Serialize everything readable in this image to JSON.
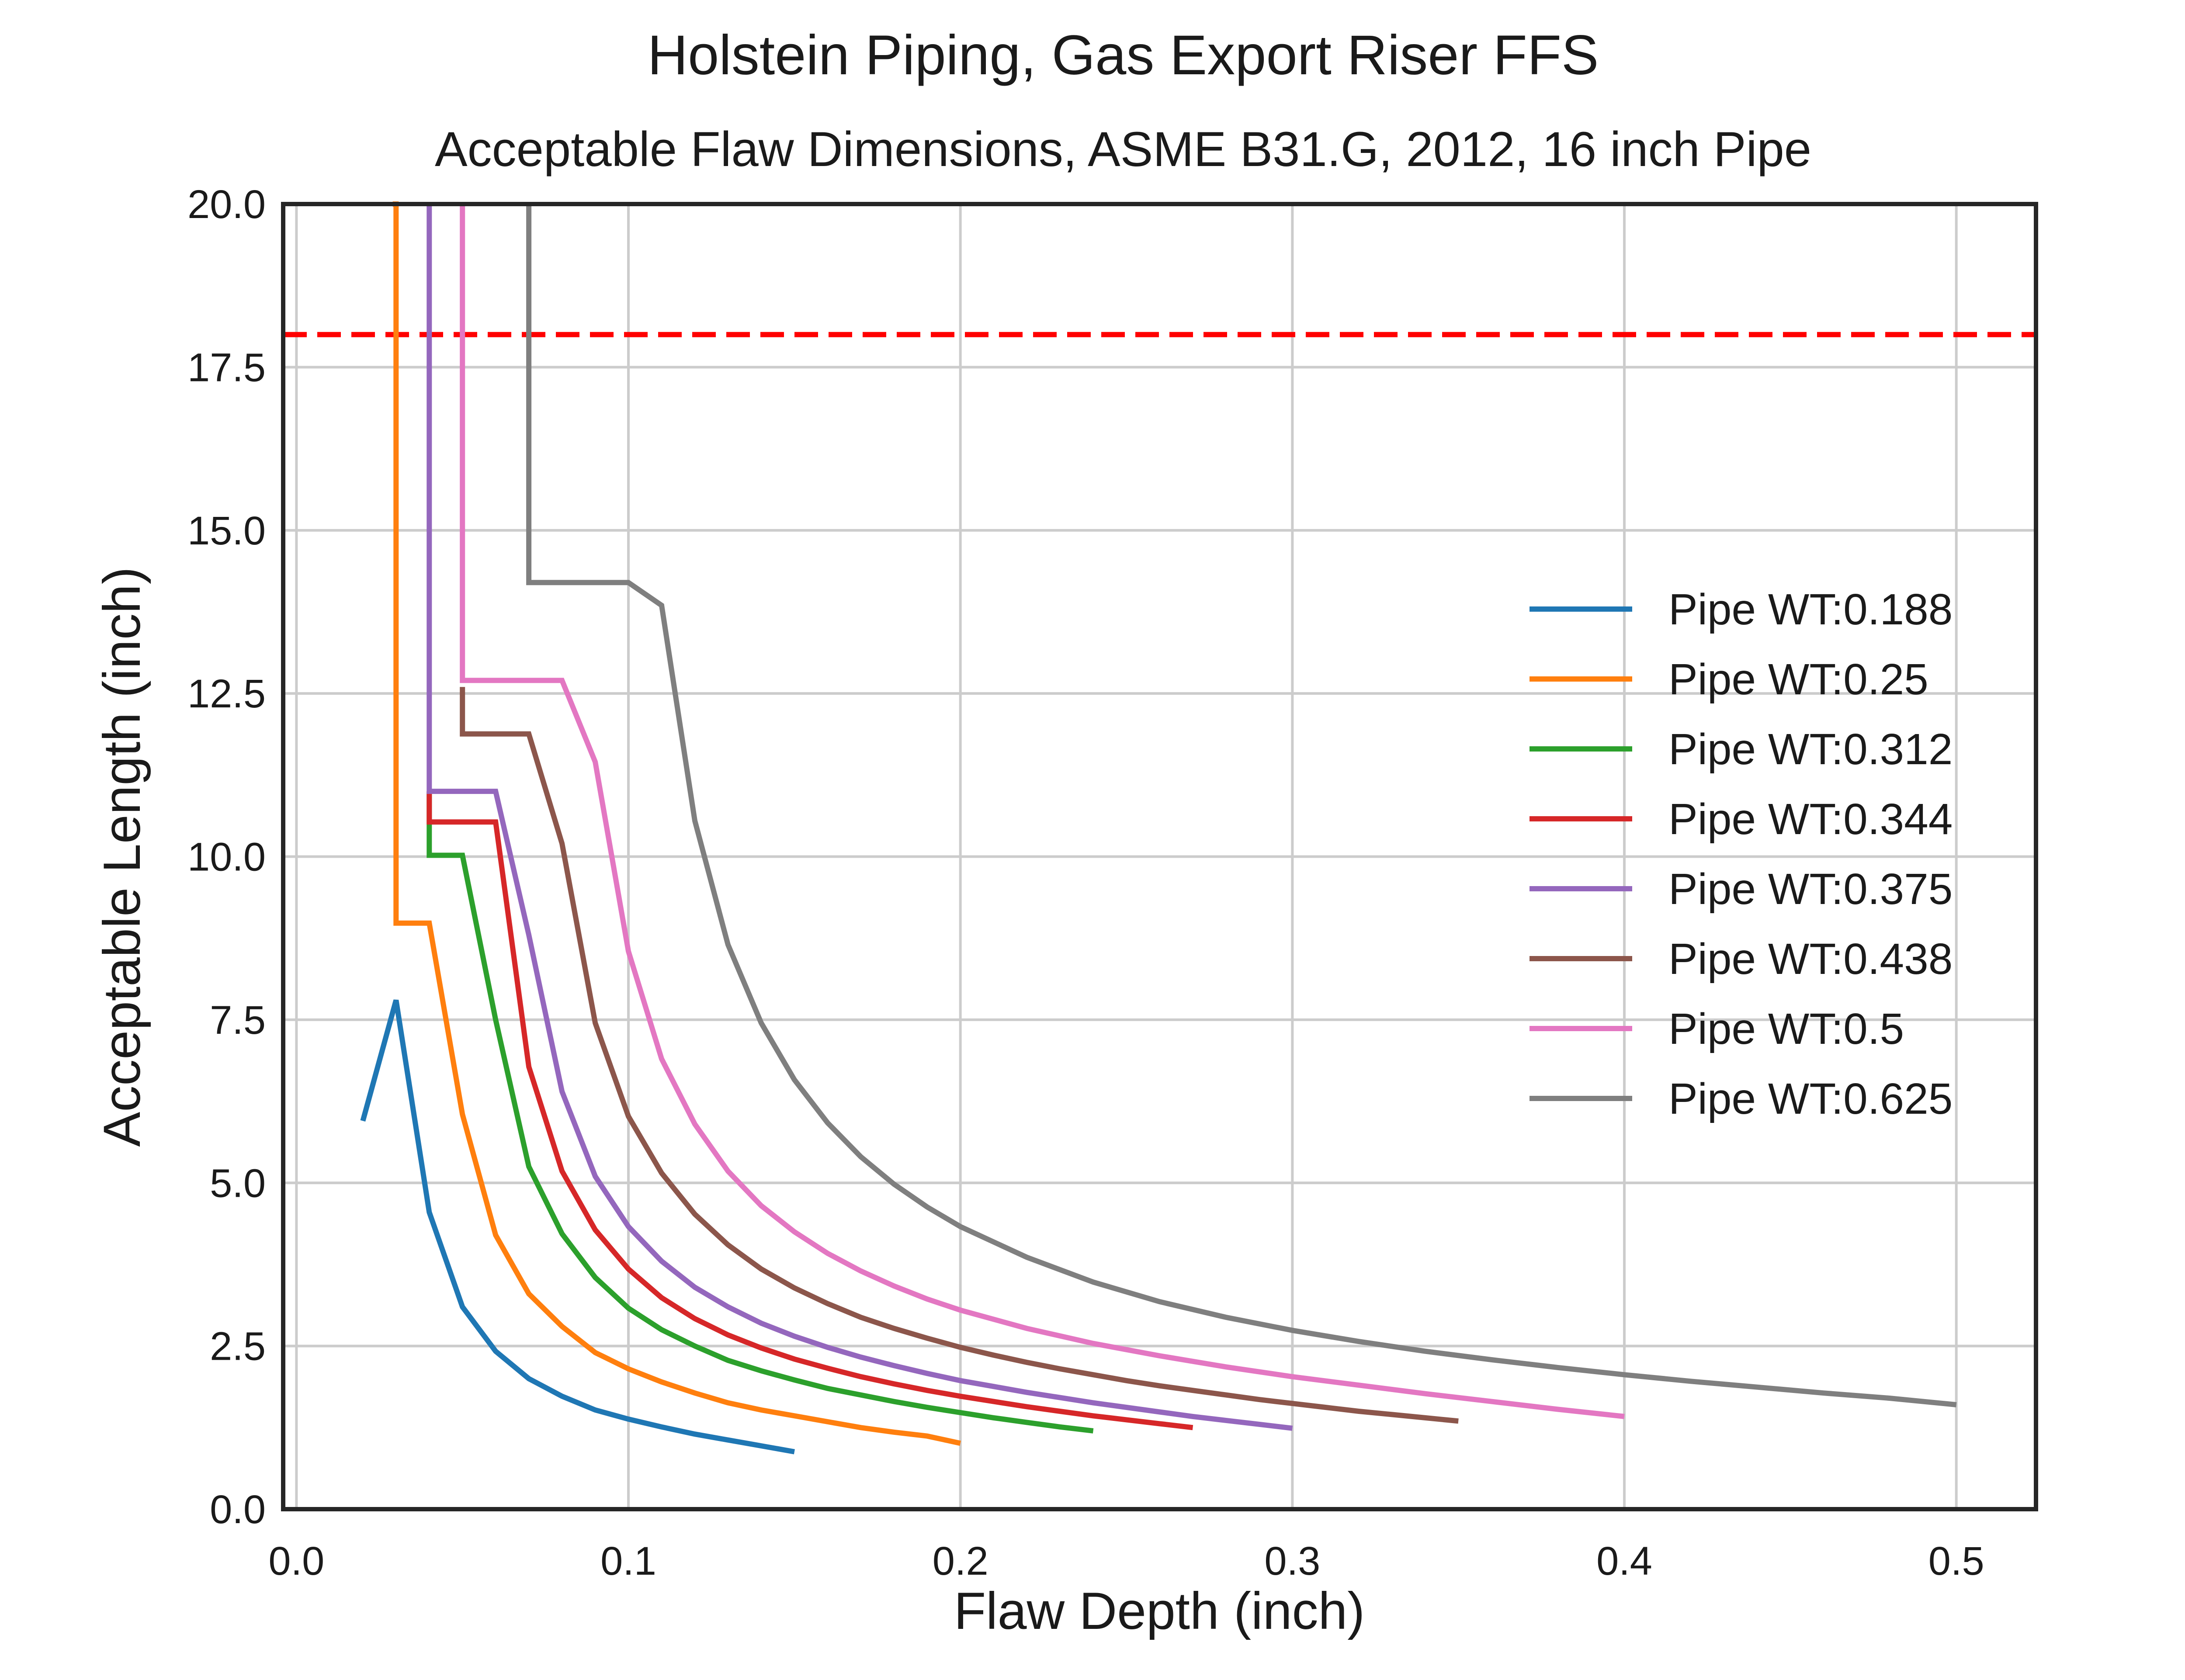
{
  "chart_data": {
    "type": "line",
    "title": "Holstein Piping, Gas Export Riser FFS",
    "subtitle": "Acceptable Flaw Dimensions, ASME B31.G, 2012, 16 inch Pipe",
    "xlabel": "Flaw Depth (inch)",
    "ylabel": "Acceptable Length (inch)",
    "xlim": [
      -0.004,
      0.524
    ],
    "ylim": [
      0,
      20
    ],
    "xticks": [
      0.0,
      0.1,
      0.2,
      0.3,
      0.4,
      0.5
    ],
    "xtick_labels": [
      "0.0",
      "0.1",
      "0.2",
      "0.3",
      "0.4",
      "0.5"
    ],
    "yticks": [
      0.0,
      2.5,
      5.0,
      7.5,
      10.0,
      12.5,
      15.0,
      17.5,
      20.0
    ],
    "ytick_labels": [
      "0.0",
      "2.5",
      "5.0",
      "7.5",
      "10.0",
      "12.5",
      "15.0",
      "17.5",
      "20.0"
    ],
    "grid": true,
    "legend_position": "center-right",
    "reference_line": {
      "y": 18,
      "color": "#ff0000",
      "style": "dashed"
    },
    "series": [
      {
        "name": "Pipe WT:0.188",
        "color": "#1f77b4",
        "x": [
          0.02,
          0.03,
          0.04,
          0.05,
          0.06,
          0.07,
          0.08,
          0.09,
          0.1,
          0.11,
          0.12,
          0.13,
          0.14,
          0.15
        ],
        "y": [
          5.95,
          7.8,
          4.55,
          3.1,
          2.42,
          2.0,
          1.73,
          1.52,
          1.38,
          1.26,
          1.15,
          1.06,
          0.97,
          0.88
        ]
      },
      {
        "name": "Pipe WT:0.25",
        "color": "#ff7f0e",
        "x": [
          0.029,
          0.03,
          0.03,
          0.04,
          0.05,
          0.06,
          0.07,
          0.08,
          0.09,
          0.1,
          0.11,
          0.12,
          0.13,
          0.14,
          0.15,
          0.16,
          0.17,
          0.18,
          0.19,
          0.2
        ],
        "y": [
          20.0,
          20.0,
          8.98,
          8.98,
          6.05,
          4.2,
          3.3,
          2.8,
          2.4,
          2.15,
          1.95,
          1.78,
          1.63,
          1.52,
          1.43,
          1.34,
          1.25,
          1.18,
          1.12,
          1.01
        ]
      },
      {
        "name": "Pipe WT:0.312",
        "color": "#2ca02c",
        "x": [
          0.04,
          0.04,
          0.05,
          0.06,
          0.07,
          0.08,
          0.09,
          0.1,
          0.11,
          0.12,
          0.13,
          0.14,
          0.15,
          0.16,
          0.17,
          0.18,
          0.19,
          0.2,
          0.21,
          0.22,
          0.23,
          0.24
        ],
        "y": [
          11.0,
          10.02,
          10.02,
          7.5,
          5.25,
          4.22,
          3.55,
          3.08,
          2.75,
          2.5,
          2.28,
          2.12,
          1.98,
          1.85,
          1.75,
          1.65,
          1.56,
          1.48,
          1.4,
          1.33,
          1.26,
          1.2
        ]
      },
      {
        "name": "Pipe WT:0.344",
        "color": "#d62728",
        "x": [
          0.04,
          0.04,
          0.06,
          0.07,
          0.08,
          0.09,
          0.1,
          0.11,
          0.12,
          0.13,
          0.14,
          0.15,
          0.16,
          0.17,
          0.18,
          0.19,
          0.2,
          0.21,
          0.22,
          0.23,
          0.24,
          0.25,
          0.26,
          0.27
        ],
        "y": [
          11.0,
          10.53,
          10.53,
          6.78,
          5.18,
          4.28,
          3.68,
          3.24,
          2.92,
          2.67,
          2.47,
          2.3,
          2.16,
          2.03,
          1.92,
          1.82,
          1.73,
          1.65,
          1.57,
          1.5,
          1.43,
          1.37,
          1.31,
          1.25
        ]
      },
      {
        "name": "Pipe WT:0.375",
        "color": "#9467bd",
        "x": [
          0.04,
          0.04,
          0.06,
          0.07,
          0.08,
          0.09,
          0.1,
          0.11,
          0.12,
          0.13,
          0.14,
          0.15,
          0.16,
          0.17,
          0.18,
          0.19,
          0.2,
          0.21,
          0.22,
          0.23,
          0.24,
          0.25,
          0.26,
          0.27,
          0.28,
          0.29,
          0.3
        ],
        "y": [
          20.0,
          11.0,
          11.0,
          8.8,
          6.4,
          5.1,
          4.33,
          3.8,
          3.4,
          3.1,
          2.85,
          2.65,
          2.48,
          2.33,
          2.2,
          2.08,
          1.97,
          1.88,
          1.79,
          1.71,
          1.63,
          1.56,
          1.49,
          1.42,
          1.36,
          1.3,
          1.24
        ]
      },
      {
        "name": "Pipe WT:0.438",
        "color": "#8c564b",
        "x": [
          0.05,
          0.05,
          0.07,
          0.08,
          0.09,
          0.1,
          0.11,
          0.12,
          0.13,
          0.14,
          0.15,
          0.16,
          0.17,
          0.18,
          0.19,
          0.2,
          0.21,
          0.22,
          0.23,
          0.24,
          0.25,
          0.26,
          0.27,
          0.28,
          0.29,
          0.3,
          0.31,
          0.32,
          0.33,
          0.34,
          0.35
        ],
        "y": [
          12.6,
          11.88,
          11.88,
          10.2,
          7.45,
          6.02,
          5.15,
          4.52,
          4.05,
          3.68,
          3.39,
          3.15,
          2.94,
          2.77,
          2.62,
          2.48,
          2.36,
          2.25,
          2.15,
          2.06,
          1.97,
          1.89,
          1.82,
          1.75,
          1.68,
          1.62,
          1.56,
          1.5,
          1.45,
          1.4,
          1.35
        ]
      },
      {
        "name": "Pipe WT:0.5",
        "color": "#e377c2",
        "x": [
          0.05,
          0.05,
          0.08,
          0.09,
          0.1,
          0.11,
          0.12,
          0.13,
          0.14,
          0.15,
          0.16,
          0.17,
          0.18,
          0.19,
          0.2,
          0.22,
          0.24,
          0.26,
          0.28,
          0.3,
          0.32,
          0.34,
          0.36,
          0.38,
          0.4
        ],
        "y": [
          20.0,
          12.7,
          12.7,
          11.45,
          8.55,
          6.9,
          5.9,
          5.18,
          4.65,
          4.25,
          3.92,
          3.65,
          3.42,
          3.22,
          3.05,
          2.77,
          2.54,
          2.35,
          2.18,
          2.03,
          1.9,
          1.77,
          1.65,
          1.53,
          1.42
        ]
      },
      {
        "name": "Pipe WT:0.625",
        "color": "#7f7f7f",
        "x": [
          0.07,
          0.07,
          0.1,
          0.11,
          0.12,
          0.13,
          0.14,
          0.15,
          0.16,
          0.17,
          0.18,
          0.19,
          0.2,
          0.22,
          0.24,
          0.26,
          0.28,
          0.3,
          0.32,
          0.34,
          0.36,
          0.38,
          0.4,
          0.42,
          0.44,
          0.46,
          0.48,
          0.5
        ],
        "y": [
          20.0,
          14.2,
          14.2,
          13.85,
          10.55,
          8.65,
          7.45,
          6.58,
          5.92,
          5.4,
          4.98,
          4.63,
          4.33,
          3.86,
          3.48,
          3.18,
          2.94,
          2.74,
          2.57,
          2.42,
          2.29,
          2.17,
          2.06,
          1.96,
          1.87,
          1.78,
          1.7,
          1.6
        ]
      }
    ]
  }
}
